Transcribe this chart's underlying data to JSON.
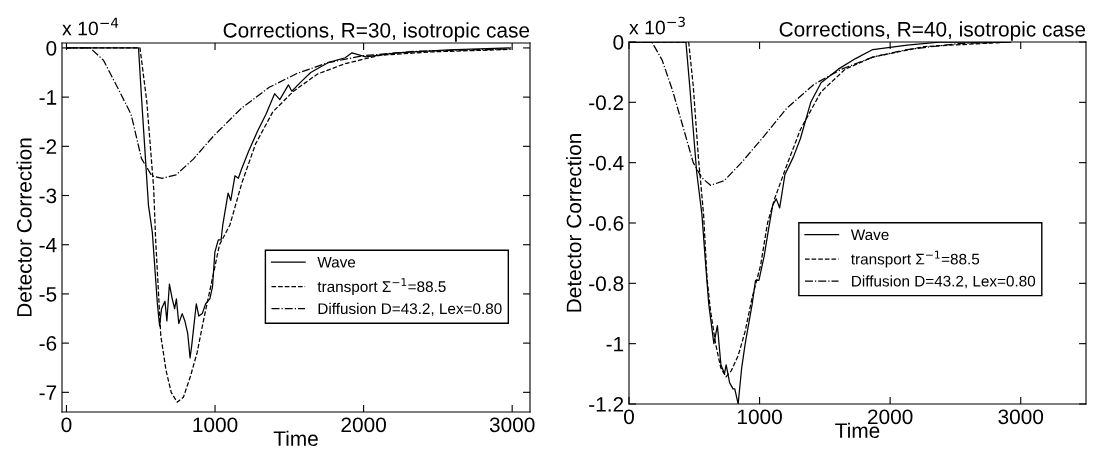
{
  "chart_data": [
    {
      "type": "line",
      "title": "Corrections, R=30, isotropic case",
      "xlabel": "Time",
      "ylabel": "Detector Correction",
      "annotations": [
        "x 10$^{−4}$"
      ],
      "xlim": [
        -30,
        3120
      ],
      "xticks": [
        0,
        1000,
        2000,
        3000
      ],
      "ylim": [
        -7.4,
        0.1
      ],
      "yticks": [
        -7,
        -6,
        -5,
        -4,
        -3,
        -2,
        -1,
        0
      ],
      "grid": false,
      "legend": "lower right",
      "series": [
        {
          "name": "Wave",
          "color": "#000000",
          "line_style": "solid",
          "x": [
            0,
            485,
            505,
            552,
            578,
            612,
            627,
            640,
            663,
            676,
            693,
            712,
            728,
            740,
            756,
            779,
            797,
            816,
            832,
            843,
            874,
            891,
            914,
            937,
            965,
            983,
            999,
            1022,
            1041,
            1052,
            1088,
            1106,
            1134,
            1157,
            1180,
            1226,
            1285,
            1343,
            1401,
            1436,
            1494,
            1517,
            1575,
            1644,
            1760,
            1876,
            1922,
            2015,
            2224,
            2572,
            2990
          ],
          "values": [
            0,
            0,
            -1.0,
            -3.2,
            -3.75,
            -5.2,
            -5.65,
            -5.3,
            -5.15,
            -5.55,
            -4.8,
            -5.1,
            -5.3,
            -5.1,
            -5.6,
            -5.4,
            -5.55,
            -5.8,
            -6.3,
            -6.05,
            -5.2,
            -5.45,
            -5.4,
            -5.2,
            -5.1,
            -4.85,
            -4.15,
            -3.9,
            -3.9,
            -3.6,
            -2.95,
            -3.1,
            -2.6,
            -2.65,
            -2.45,
            -2.1,
            -1.7,
            -1.35,
            -0.93,
            -1.05,
            -0.75,
            -0.88,
            -0.7,
            -0.5,
            -0.3,
            -0.2,
            -0.1,
            -0.18,
            -0.1,
            -0.04,
            0
          ]
        },
        {
          "name": "transport Σ$^{−1}$=88.5",
          "color": "#000000",
          "line_style": "dashed",
          "x": [
            0,
            495,
            541,
            587,
            600,
            635,
            670,
            705,
            745,
            787,
            832,
            879,
            925,
            971,
            1030,
            1100,
            1180,
            1273,
            1389,
            1528,
            1690,
            1876,
            2108,
            2456,
            2990
          ],
          "values": [
            0,
            0,
            -1.1,
            -2.85,
            -3.88,
            -5.85,
            -6.55,
            -7.0,
            -7.2,
            -7.1,
            -6.7,
            -6.2,
            -5.5,
            -4.85,
            -4.0,
            -3.6,
            -2.75,
            -1.95,
            -1.3,
            -0.88,
            -0.53,
            -0.32,
            -0.15,
            -0.08,
            -0.03
          ]
        },
        {
          "name": "Diffusion D=43.2, Lex=0.80",
          "color": "#000000",
          "line_style": "dashdot",
          "x": [
            0,
            159,
            249,
            343,
            435,
            505,
            575,
            645,
            738,
            854,
            993,
            1180,
            1365,
            1551,
            1760,
            1992,
            2340,
            2990
          ],
          "values": [
            0,
            0,
            -0.25,
            -0.8,
            -1.35,
            -2.25,
            -2.6,
            -2.65,
            -2.58,
            -2.26,
            -1.78,
            -1.22,
            -0.8,
            -0.52,
            -0.3,
            -0.16,
            -0.07,
            -0.02
          ]
        }
      ]
    },
    {
      "type": "line",
      "title": "Corrections, R=40, isotropic case",
      "xlabel": "Time",
      "ylabel": "Detector Correction",
      "annotations": [
        "x 10$^{−3}$"
      ],
      "xlim": [
        0,
        3500
      ],
      "xticks": [
        0,
        1000,
        2000,
        3000
      ],
      "ylim": [
        -1.2,
        0
      ],
      "yticks": [
        -1.2,
        -1,
        -0.8,
        -0.6,
        -0.4,
        -0.2,
        0
      ],
      "grid": false,
      "legend": "center right",
      "series": [
        {
          "name": "Wave",
          "color": "#000000",
          "line_style": "solid",
          "x": [
            0,
            436,
            465,
            518,
            558,
            584,
            611,
            650,
            677,
            704,
            731,
            744,
            771,
            797,
            810,
            836,
            863,
            890,
            943,
            969,
            995,
            1035,
            1069,
            1101,
            1128,
            1154,
            1194,
            1260,
            1313,
            1392,
            1471,
            1603,
            1735,
            1867,
            2131,
            2395,
            2923
          ],
          "values": [
            0,
            0,
            -0.146,
            -0.43,
            -0.57,
            -0.72,
            -0.87,
            -1.0,
            -0.94,
            -1.07,
            -1.1,
            -1.07,
            -1.13,
            -1.15,
            -1.15,
            -1.2,
            -1.08,
            -1.0,
            -0.87,
            -0.79,
            -0.79,
            -0.71,
            -0.62,
            -0.54,
            -0.52,
            -0.55,
            -0.44,
            -0.38,
            -0.32,
            -0.2,
            -0.135,
            -0.09,
            -0.055,
            -0.025,
            -0.01,
            0,
            0
          ]
        },
        {
          "name": "transport Σ$^{−1}$=88.5",
          "color": "#000000",
          "line_style": "dashed",
          "x": [
            0,
            457,
            492,
            531,
            571,
            597,
            624,
            663,
            703,
            743,
            783,
            836,
            889,
            942,
            1008,
            1061,
            1115,
            1207,
            1313,
            1471,
            1656,
            1867,
            2263,
            2923
          ],
          "values": [
            0,
            0,
            -0.146,
            -0.38,
            -0.57,
            -0.78,
            -0.89,
            -1.0,
            -1.08,
            -1.11,
            -1.09,
            -1.04,
            -0.96,
            -0.85,
            -0.74,
            -0.6,
            -0.52,
            -0.41,
            -0.29,
            -0.165,
            -0.09,
            -0.05,
            -0.015,
            0
          ]
        },
        {
          "name": "Diffusion D=43.2, Lex=0.80",
          "color": "#000000",
          "line_style": "dashdot",
          "x": [
            0,
            175,
            254,
            333,
            413,
            492,
            558,
            624,
            729,
            861,
            1019,
            1207,
            1418,
            1629,
            1867,
            2131,
            2527,
            2923
          ],
          "values": [
            0,
            0,
            -0.06,
            -0.16,
            -0.28,
            -0.4,
            -0.45,
            -0.475,
            -0.46,
            -0.4,
            -0.32,
            -0.22,
            -0.14,
            -0.09,
            -0.05,
            -0.025,
            -0.005,
            0
          ]
        }
      ]
    }
  ]
}
